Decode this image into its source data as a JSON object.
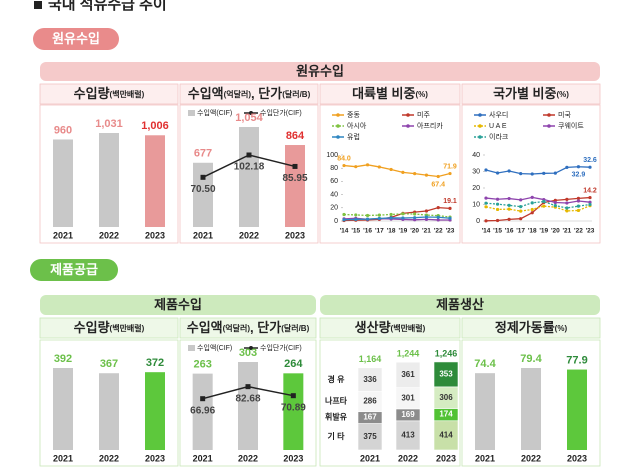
{
  "header": {
    "title": "국내 석유수급 추이"
  },
  "sections": [
    {
      "label": "원유수입",
      "headers": [
        "원유수입"
      ]
    },
    {
      "label": "제품공급",
      "headers": [
        "제품수입",
        "제품생산"
      ]
    }
  ],
  "chart_data": [
    {
      "type": "bar",
      "title": [
        "수입량",
        "(백만배럴)"
      ],
      "categories": [
        "2021",
        "2022",
        "2023"
      ],
      "values": [
        960,
        1031,
        1006
      ],
      "value_labels": [
        "960",
        "1,031",
        "1,006"
      ],
      "colors": [
        "#c8c8c8",
        "#c8c8c8",
        "#e89a9a"
      ],
      "label_colors": [
        "#e88a8a",
        "#e88a8a",
        "#e03030"
      ]
    },
    {
      "type": "bar_line",
      "title": [
        "수입액",
        "(억달러)",
        ", 단가",
        "(달러/B)"
      ],
      "categories": [
        "2021",
        "2022",
        "2023"
      ],
      "series": [
        {
          "name": "수입액(CIF)",
          "values": [
            677,
            1054,
            864
          ],
          "value_labels": [
            "677",
            "1,054",
            "864"
          ],
          "colors": [
            "#c8c8c8",
            "#c8c8c8",
            "#e89a9a"
          ],
          "label_colors": [
            "#e88a8a",
            "#e88a8a",
            "#e03030"
          ]
        },
        {
          "name": "수입단가(CIF)",
          "axis": "y2",
          "values": [
            70.5,
            102.18,
            85.95
          ],
          "value_labels": [
            "70.50",
            "102.18",
            "85.95"
          ],
          "color": "#222222"
        }
      ]
    },
    {
      "type": "line",
      "title": [
        "대륙별 비중",
        "(%)"
      ],
      "categories": [
        "'14",
        "'15",
        "'16",
        "'17",
        "'18",
        "'19",
        "'20",
        "'21",
        "'22",
        "'23"
      ],
      "ylim": [
        0,
        100
      ],
      "yticks": [
        0,
        20,
        40,
        60,
        80,
        100
      ],
      "series": [
        {
          "name": "중동",
          "color": "#f0a020",
          "values": [
            84.0,
            82.3,
            85.1,
            81.9,
            78.1,
            73.7,
            71.8,
            69.5,
            67.4,
            71.9
          ],
          "value_labels": [
            "84.0",
            null,
            null,
            null,
            null,
            null,
            null,
            null,
            "67.4",
            "71.9"
          ]
        },
        {
          "name": "미주",
          "color": "#c0392b",
          "values": [
            0.8,
            1.2,
            1.5,
            2.5,
            5.5,
            11.6,
            13.4,
            15.2,
            20.3,
            19.1
          ],
          "value_labels": [
            null,
            null,
            null,
            null,
            null,
            null,
            null,
            null,
            null,
            "19.1"
          ]
        },
        {
          "name": "아시아",
          "color": "#7fc241",
          "dash": true,
          "values": [
            9.8,
            9.2,
            8.4,
            8.9,
            9.9,
            10.9,
            10.6,
            9.0,
            8.1,
            6.0
          ]
        },
        {
          "name": "아프리카",
          "color": "#8e44ad",
          "values": [
            3.2,
            4.1,
            2.7,
            3.6,
            3.0,
            2.4,
            1.8,
            2.5,
            1.6,
            1.5
          ]
        },
        {
          "name": "유럽",
          "color": "#2e86c1",
          "values": [
            1.9,
            2.4,
            2.8,
            3.9,
            4.8,
            4.6,
            5.0,
            6.1,
            5.7,
            4.2
          ]
        }
      ]
    },
    {
      "type": "line",
      "title": [
        "국가별 비중",
        "(%)"
      ],
      "categories": [
        "'14",
        "'15",
        "'16",
        "'17",
        "'18",
        "'19",
        "'20",
        "'21",
        "'22",
        "'23"
      ],
      "ylim": [
        0,
        40
      ],
      "yticks": [
        0,
        10,
        20,
        30,
        40
      ],
      "series": [
        {
          "name": "사우디",
          "color": "#2f6fbf",
          "values": [
            30.9,
            29.1,
            30.3,
            28.7,
            28.5,
            28.9,
            29.0,
            32.5,
            32.9,
            32.6
          ],
          "value_labels": [
            null,
            null,
            null,
            null,
            null,
            null,
            null,
            null,
            "32.9",
            "32.6"
          ]
        },
        {
          "name": "미국",
          "color": "#c0392b",
          "values": [
            0.1,
            0.3,
            1.0,
            1.4,
            5.0,
            11.2,
            12.5,
            13.1,
            13.7,
            14.2
          ],
          "value_labels": [
            null,
            null,
            null,
            null,
            null,
            null,
            null,
            null,
            null,
            "14.2"
          ]
        },
        {
          "name": "U A E",
          "color": "#e6b800",
          "dash": true,
          "values": [
            8.6,
            7.0,
            7.2,
            6.0,
            7.0,
            9.0,
            8.4,
            6.1,
            6.4,
            9.3
          ]
        },
        {
          "name": "쿠웨이트",
          "color": "#8e44ad",
          "values": [
            13.9,
            13.2,
            13.6,
            12.8,
            14.3,
            13.0,
            11.2,
            10.9,
            12.1,
            11.4
          ]
        },
        {
          "name": "이라크",
          "color": "#2aa198",
          "dash": true,
          "values": [
            10.8,
            10.2,
            9.5,
            8.7,
            11.0,
            11.8,
            9.3,
            7.9,
            9.0,
            10.0
          ]
        }
      ]
    },
    {
      "type": "bar",
      "title": [
        "수입량",
        "(백만배럴)"
      ],
      "categories": [
        "2021",
        "2022",
        "2023"
      ],
      "values": [
        392,
        367,
        372
      ],
      "colors": [
        "#c8c8c8",
        "#c8c8c8",
        "#5dc83c"
      ],
      "label_colors": [
        "#6cc04a",
        "#6cc04a",
        "#2e8b3a"
      ]
    },
    {
      "type": "bar_line",
      "title": [
        "수입액",
        "(억달러)",
        ", 단가",
        "(달러/B)"
      ],
      "categories": [
        "2021",
        "2022",
        "2023"
      ],
      "series": [
        {
          "name": "수입액(CIF)",
          "values": [
            263,
            303,
            264
          ],
          "colors": [
            "#c8c8c8",
            "#c8c8c8",
            "#5dc83c"
          ],
          "label_colors": [
            "#6cc04a",
            "#6cc04a",
            "#2e8b3a"
          ]
        },
        {
          "name": "수입단가(CIF)",
          "axis": "y2",
          "values": [
            66.96,
            82.68,
            70.89
          ],
          "color": "#222222"
        }
      ]
    },
    {
      "type": "stacked",
      "title": [
        "생산량",
        "(백만배럴)"
      ],
      "categories": [
        "2021",
        "2022",
        "2023"
      ],
      "totals": [
        1164,
        1244,
        1246
      ],
      "total_labels": [
        "1,164",
        "1,244",
        "1,246"
      ],
      "total_label_colors": [
        "#6cc04a",
        "#6cc04a",
        "#2e8b3a"
      ],
      "series": [
        {
          "name": "경 유",
          "values": [
            336,
            361,
            353
          ],
          "colors": [
            "#ececec",
            "#ececec",
            "#2e8b3a"
          ],
          "label_colors": [
            "#333333",
            "#333333",
            "#ffffff"
          ]
        },
        {
          "name": "나프타",
          "values": [
            286,
            301,
            306
          ],
          "colors": [
            "#f6f6f6",
            "#f6f6f6",
            "#d5ecc2"
          ],
          "label_colors": [
            "#333333",
            "#333333",
            "#333333"
          ]
        },
        {
          "name": "휘발유",
          "values": [
            167,
            169,
            174
          ],
          "colors": [
            "#8c8c8c",
            "#8c8c8c",
            "#52c234"
          ],
          "label_colors": [
            "#ffffff",
            "#ffffff",
            "#ffffff"
          ]
        },
        {
          "name": "기 타",
          "values": [
            375,
            413,
            414
          ],
          "colors": [
            "#d4d4d4",
            "#d4d4d4",
            "#c8e0a8"
          ],
          "label_colors": [
            "#333333",
            "#333333",
            "#333333"
          ]
        }
      ]
    },
    {
      "type": "bar",
      "title": [
        "정제가동률",
        "(%)"
      ],
      "categories": [
        "2021",
        "2022",
        "2023"
      ],
      "values": [
        74.4,
        79.4,
        77.9
      ],
      "colors": [
        "#c8c8c8",
        "#c8c8c8",
        "#5dc83c"
      ],
      "label_colors": [
        "#6cc04a",
        "#6cc04a",
        "#2e8b3a"
      ]
    }
  ]
}
